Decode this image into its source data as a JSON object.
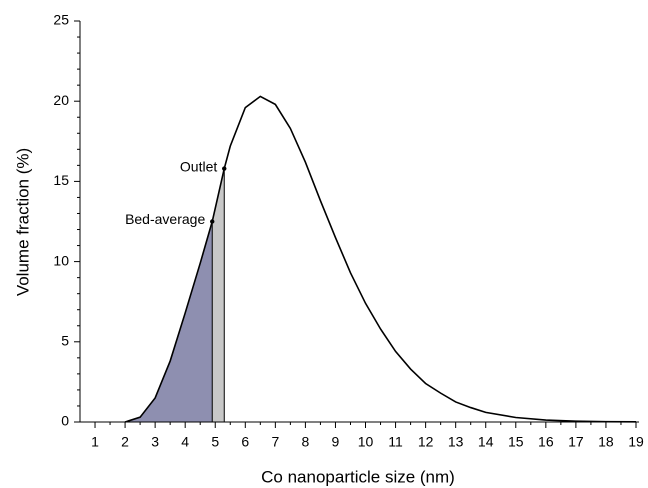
{
  "chart_data": {
    "type": "line",
    "xlabel": "Co nanoparticle size (nm)",
    "ylabel": "Volume fraction (%)",
    "x": [
      2,
      2.5,
      3,
      3.5,
      4,
      4.5,
      4.9,
      5.3,
      5.5,
      6,
      6.5,
      7,
      7.5,
      8,
      8.5,
      9,
      9.5,
      10,
      10.5,
      11,
      11.5,
      12,
      12.5,
      13,
      13.5,
      14,
      15,
      16,
      17,
      18,
      19
    ],
    "values": [
      0,
      0.3,
      1.5,
      3.8,
      6.8,
      9.9,
      12.5,
      15.8,
      17.2,
      19.6,
      20.3,
      19.8,
      18.3,
      16.2,
      13.8,
      11.5,
      9.3,
      7.4,
      5.8,
      4.4,
      3.3,
      2.4,
      1.8,
      1.25,
      0.9,
      0.6,
      0.28,
      0.12,
      0.05,
      0.02,
      0.01
    ],
    "color": "#000000",
    "markers": [
      {
        "label": "Bed-average",
        "x": 4.9,
        "y": 12.5,
        "color": "#8e8fb0"
      },
      {
        "label": "Outlet",
        "x": 5.3,
        "y": 15.8,
        "color": "#c8c8c8"
      }
    ],
    "xlim": [
      0.5,
      19.1
    ],
    "xticks": [
      1,
      2,
      3,
      4,
      5,
      6,
      7,
      8,
      9,
      10,
      11,
      12,
      13,
      14,
      15,
      16,
      17,
      18,
      19
    ],
    "ylim": [
      0,
      25
    ],
    "yticks": [
      0,
      5,
      10,
      15,
      20,
      25
    ]
  }
}
